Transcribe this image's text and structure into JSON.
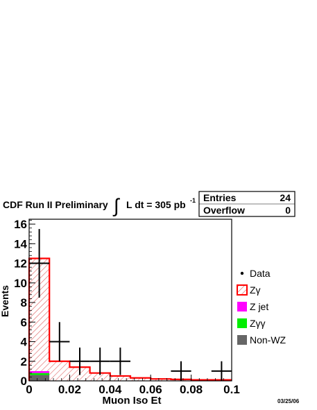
{
  "header": {
    "title_prefix": "CDF Run II Preliminary",
    "integral_symbol": "∫",
    "lumi_text": "L dt = 305 pb",
    "lumi_exponent": "-1"
  },
  "stats_box": {
    "rows": [
      {
        "label": "Entries",
        "value": "24"
      },
      {
        "label": "Overflow",
        "value": "0"
      }
    ]
  },
  "date_label": "03/25/06",
  "colors": {
    "zgamma": "#ff0000",
    "zjet": "#ff00ff",
    "zgammagamma": "#00ee00",
    "nonwz": "#666666",
    "data": "#000000"
  },
  "chart_data": {
    "type": "bar",
    "xlabel": "Muon Iso Et",
    "ylabel": "Events",
    "xlim": [
      0,
      0.1
    ],
    "ylim": [
      0,
      16.5
    ],
    "x_ticks": [
      0,
      0.02,
      0.04,
      0.06,
      0.08,
      0.1
    ],
    "x_tick_labels": [
      "0",
      "0.02",
      "0.04",
      "0.06",
      "0.08",
      "0.1"
    ],
    "y_ticks": [
      0,
      2,
      4,
      6,
      8,
      10,
      12,
      14,
      16
    ],
    "y_tick_labels": [
      "0",
      "2",
      "4",
      "6",
      "8",
      "10",
      "12",
      "14",
      "16"
    ],
    "bin_edges": [
      0,
      0.01,
      0.02,
      0.03,
      0.04,
      0.05,
      0.06,
      0.07,
      0.08,
      0.09,
      0.1
    ],
    "stacked_series": [
      {
        "name": "Non-WZ",
        "key": "nonwz",
        "values": [
          0.6,
          0,
          0,
          0,
          0,
          0,
          0,
          0,
          0,
          0
        ]
      },
      {
        "name": "Zγγ",
        "key": "zgammagamma",
        "values": [
          0.2,
          0,
          0,
          0,
          0,
          0,
          0,
          0,
          0,
          0
        ]
      },
      {
        "name": "Z jet",
        "key": "zjet",
        "values": [
          0.2,
          0,
          0,
          0,
          0,
          0,
          0,
          0,
          0,
          0
        ]
      },
      {
        "name": "Zγ",
        "key": "zgamma",
        "values": [
          11.5,
          2.0,
          1.4,
          0.8,
          0.5,
          0.3,
          0.2,
          0.15,
          0.1,
          0.1
        ]
      }
    ],
    "data_points": [
      {
        "x": 0.005,
        "y": 12,
        "xerr": 0.005,
        "yerr": 3.5
      },
      {
        "x": 0.015,
        "y": 4,
        "xerr": 0.005,
        "yerr": 2.0
      },
      {
        "x": 0.025,
        "y": 2,
        "xerr": 0.005,
        "yerr": 1.4
      },
      {
        "x": 0.035,
        "y": 2,
        "xerr": 0.005,
        "yerr": 1.4
      },
      {
        "x": 0.045,
        "y": 2,
        "xerr": 0.005,
        "yerr": 1.4
      },
      {
        "x": 0.075,
        "y": 1,
        "xerr": 0.005,
        "yerr": 1.0
      },
      {
        "x": 0.095,
        "y": 1,
        "xerr": 0.005,
        "yerr": 1.0
      }
    ],
    "legend": [
      {
        "label": "Data",
        "key": "data",
        "style": "marker"
      },
      {
        "label": "Zγ",
        "key": "zgamma",
        "style": "hatched"
      },
      {
        "label": "Z jet",
        "key": "zjet",
        "style": "fill"
      },
      {
        "label": "Zγγ",
        "key": "zgammagamma",
        "style": "fill"
      },
      {
        "label": "Non-WZ",
        "key": "nonwz",
        "style": "fill"
      }
    ]
  }
}
